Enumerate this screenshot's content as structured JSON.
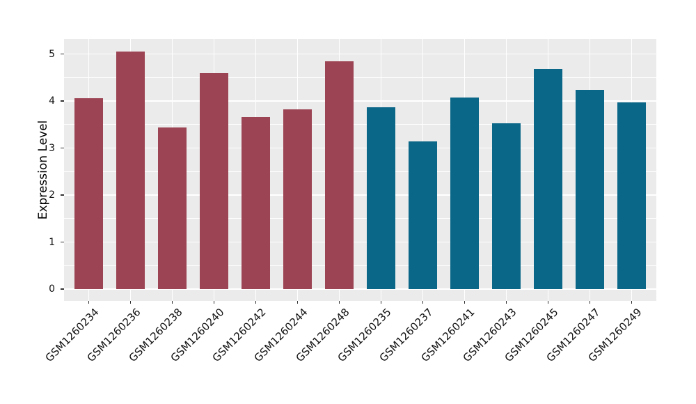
{
  "figure": {
    "background": "#FFFFFF",
    "panel_background": "#EBEBEB",
    "gridline_color": "#FFFFFF",
    "tick_color": "#333333",
    "text_color": "#111111"
  },
  "chart_data": {
    "type": "bar",
    "title": "",
    "xlabel": "",
    "ylabel": "Expression Level",
    "ylim": [
      0,
      5.3
    ],
    "yticks": [
      0,
      1,
      2,
      3,
      4,
      5
    ],
    "minor_grid_step": 0.5,
    "grid": {
      "horizontal_major": true,
      "horizontal_minor": true,
      "vertical_major_at_category_centers": true
    },
    "legend": null,
    "categories": [
      "GSM1260234",
      "GSM1260236",
      "GSM1260238",
      "GSM1260240",
      "GSM1260242",
      "GSM1260244",
      "GSM1260248",
      "GSM1260235",
      "GSM1260237",
      "GSM1260241",
      "GSM1260243",
      "GSM1260245",
      "GSM1260247",
      "GSM1260249"
    ],
    "values": [
      4.06,
      5.05,
      3.43,
      4.59,
      3.66,
      3.82,
      4.84,
      3.87,
      3.14,
      4.07,
      3.53,
      4.68,
      4.23,
      3.97
    ],
    "bar_colors": [
      "#9C4453",
      "#9C4453",
      "#9C4453",
      "#9C4453",
      "#9C4453",
      "#9C4453",
      "#9C4453",
      "#0B6788",
      "#0B6788",
      "#0B6788",
      "#0B6788",
      "#0B6788",
      "#0B6788",
      "#0B6788"
    ],
    "group_colors": {
      "left_group": "#9C4453",
      "right_group": "#0B6788"
    }
  }
}
